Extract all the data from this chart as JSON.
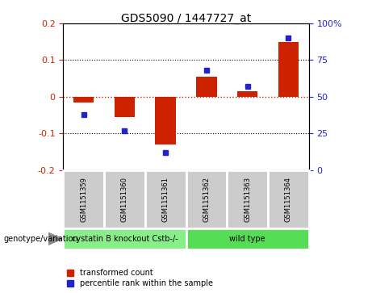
{
  "title": "GDS5090 / 1447727_at",
  "samples": [
    "GSM1151359",
    "GSM1151360",
    "GSM1151361",
    "GSM1151362",
    "GSM1151363",
    "GSM1151364"
  ],
  "red_values": [
    -0.015,
    -0.055,
    -0.13,
    0.055,
    0.015,
    0.15
  ],
  "blue_values_pct": [
    38,
    27,
    12,
    68,
    57,
    90
  ],
  "groups": [
    {
      "label": "cystatin B knockout Cstb-/-",
      "samples": [
        0,
        1,
        2
      ],
      "color": "#88ee88"
    },
    {
      "label": "wild type",
      "samples": [
        3,
        4,
        5
      ],
      "color": "#55dd55"
    }
  ],
  "ylim_left": [
    -0.2,
    0.2
  ],
  "ylim_right": [
    0,
    100
  ],
  "yticks_left": [
    -0.2,
    -0.1,
    0.0,
    0.1,
    0.2
  ],
  "yticks_right": [
    0,
    25,
    50,
    75,
    100
  ],
  "ytick_labels_right": [
    "0",
    "25",
    "50",
    "75",
    "100%"
  ],
  "ytick_labels_left": [
    "-0.2",
    "-0.1",
    "0",
    "0.1",
    "0.2"
  ],
  "red_color": "#cc2200",
  "blue_color": "#2222cc",
  "zero_line_color": "#cc2200",
  "sample_box_color": "#cccccc",
  "bar_width": 0.5,
  "legend_items": [
    "transformed count",
    "percentile rank within the sample"
  ],
  "genotype_label": "genotype/variation"
}
